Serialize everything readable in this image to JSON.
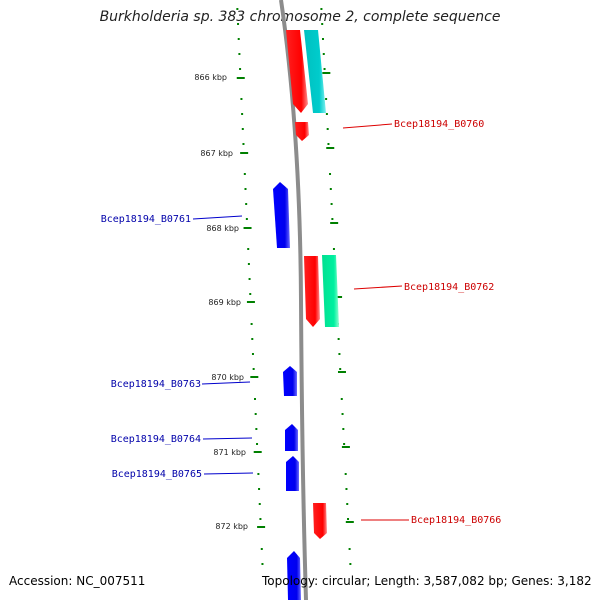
{
  "title": "Burkholderia sp. 383 chromosome 2, complete sequence",
  "footer": {
    "accession": "Accession: NC_007511",
    "topology": "Topology: circular; Length: 3,587,082 bp; Genes: 3,182"
  },
  "colors": {
    "forward_gene": "#ff0000",
    "reverse_gene": "#0000ff",
    "cyan_feature": "#00c8c8",
    "green_feature": "#00e890",
    "backbone": "#8c8c8c",
    "tick": "#008000",
    "forward_label": "#cc0000",
    "reverse_label": "#0000aa"
  },
  "kbp_labels": [
    {
      "kbp": 866,
      "text": "866 kbp"
    },
    {
      "kbp": 867,
      "text": "867 kbp"
    },
    {
      "kbp": 868,
      "text": "868 kbp"
    },
    {
      "kbp": 869,
      "text": "869 kbp"
    },
    {
      "kbp": 870,
      "text": "870 kbp"
    },
    {
      "kbp": 871,
      "text": "871 kbp"
    },
    {
      "kbp": 872,
      "text": "872 kbp"
    }
  ],
  "gene_labels": [
    {
      "name": "Bcep18194_B0760",
      "strand": "forward"
    },
    {
      "name": "Bcep18194_B0761",
      "strand": "reverse"
    },
    {
      "name": "Bcep18194_B0762",
      "strand": "forward"
    },
    {
      "name": "Bcep18194_B0763",
      "strand": "reverse"
    },
    {
      "name": "Bcep18194_B0764",
      "strand": "reverse"
    },
    {
      "name": "Bcep18194_B0765",
      "strand": "reverse"
    },
    {
      "name": "Bcep18194_B0766",
      "strand": "forward"
    }
  ]
}
